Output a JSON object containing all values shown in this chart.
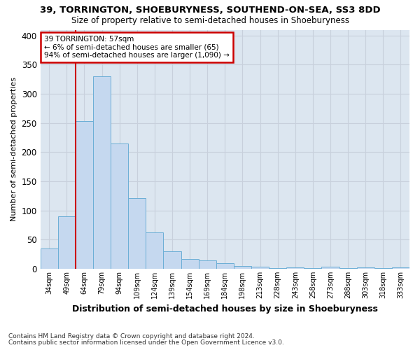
{
  "title_line1": "39, TORRINGTON, SHOEBURYNESS, SOUTHEND-ON-SEA, SS3 8DD",
  "title_line2": "Size of property relative to semi-detached houses in Shoeburyness",
  "xlabel": "Distribution of semi-detached houses by size in Shoeburyness",
  "ylabel": "Number of semi-detached properties",
  "categories": [
    "34sqm",
    "49sqm",
    "64sqm",
    "79sqm",
    "94sqm",
    "109sqm",
    "124sqm",
    "139sqm",
    "154sqm",
    "169sqm",
    "184sqm",
    "198sqm",
    "213sqm",
    "228sqm",
    "243sqm",
    "258sqm",
    "273sqm",
    "288sqm",
    "303sqm",
    "318sqm",
    "333sqm"
  ],
  "values": [
    35,
    90,
    253,
    330,
    215,
    121,
    62,
    30,
    17,
    14,
    10,
    5,
    4,
    1,
    3,
    1,
    4,
    1,
    3,
    1,
    3
  ],
  "bar_color": "#c5d8ef",
  "bar_edge_color": "#6baed6",
  "grid_color": "#c8d0dc",
  "background_color": "#dce6f0",
  "vline_color": "#cc0000",
  "vline_pos": 1.5,
  "annotation_text": "39 TORRINGTON: 57sqm\n← 6% of semi-detached houses are smaller (65)\n94% of semi-detached houses are larger (1,090) →",
  "annotation_box_color": "#ffffff",
  "annotation_box_edge": "#cc0000",
  "footnote1": "Contains HM Land Registry data © Crown copyright and database right 2024.",
  "footnote2": "Contains public sector information licensed under the Open Government Licence v3.0.",
  "ylim": [
    0,
    410
  ],
  "yticks": [
    0,
    50,
    100,
    150,
    200,
    250,
    300,
    350,
    400
  ]
}
